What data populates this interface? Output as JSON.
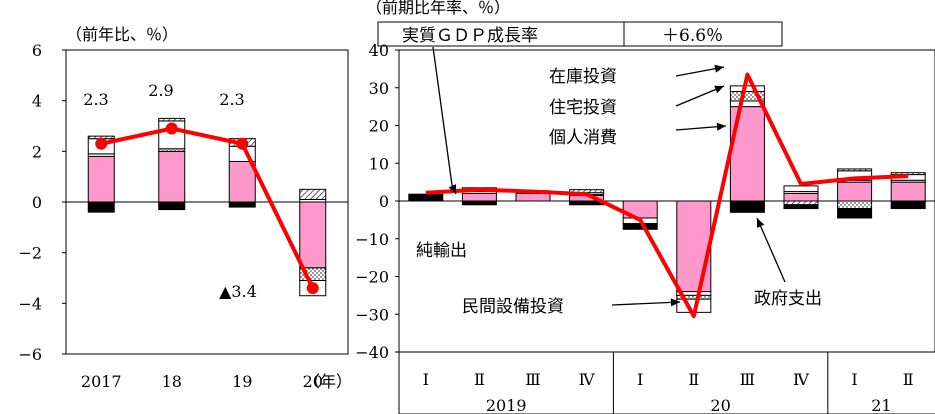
{
  "chart_data": [
    {
      "type": "bar",
      "title": "",
      "unit_label": "（前年比、％）",
      "x_unit_label": "（年）",
      "ylim": [
        -6,
        6
      ],
      "yticks": [
        6,
        4,
        2,
        0,
        -2,
        -4,
        -6
      ],
      "ytick_labels": [
        "6",
        "4",
        "2",
        "0",
        "−2",
        "−4",
        "−6"
      ],
      "categories": [
        "2017",
        "18",
        "19",
        "20"
      ],
      "stack_order": [
        "個人消費",
        "住宅投資",
        "在庫投資",
        "民間設備投資",
        "政府支出",
        "純輸出"
      ],
      "series": [
        {
          "name": "純輸出",
          "values": [
            -0.4,
            -0.3,
            -0.2,
            0.0
          ]
        },
        {
          "name": "個人消費",
          "values": [
            1.8,
            2.0,
            1.6,
            -2.6
          ]
        },
        {
          "name": "住宅投資",
          "values": [
            0.1,
            0.0,
            0.0,
            0.1
          ]
        },
        {
          "name": "民間設備投資",
          "values": [
            0.6,
            1.1,
            0.6,
            -0.6
          ]
        },
        {
          "name": "在庫投資",
          "values": [
            0.0,
            0.1,
            0.0,
            -0.5
          ]
        },
        {
          "name": "政府支出",
          "values": [
            0.1,
            0.1,
            0.3,
            0.4
          ]
        }
      ],
      "gdp_line": {
        "values": [
          2.3,
          2.9,
          2.3,
          -3.4
        ]
      },
      "data_labels": [
        "2.3",
        "2.9",
        "2.3",
        "▲3.4"
      ]
    },
    {
      "type": "bar",
      "title": "",
      "unit_label": "（前期比年率、％）",
      "gdp_box_label": "実質ＧＤＰ成長率",
      "gdp_box_value": "＋6.6％",
      "ylim": [
        -40,
        40
      ],
      "yticks": [
        40,
        30,
        20,
        10,
        0,
        -10,
        -20,
        -30,
        -40
      ],
      "ytick_labels": [
        "40",
        "30",
        "20",
        "10",
        "0",
        "−10",
        "−20",
        "−30",
        "−40"
      ],
      "categories": [
        "Ⅰ",
        "Ⅱ",
        "Ⅲ",
        "Ⅳ",
        "Ⅰ",
        "Ⅱ",
        "Ⅲ",
        "Ⅳ",
        "Ⅰ",
        "Ⅱ"
      ],
      "year_groups": [
        {
          "label": "2019",
          "count": 4
        },
        {
          "label": "20",
          "count": 4
        },
        {
          "label": "21",
          "count": 2
        }
      ],
      "stack_order": [
        "個人消費",
        "住宅投資",
        "在庫投資",
        "民間設備投資",
        "政府支出",
        "純輸出"
      ],
      "series": [
        {
          "name": "純輸出",
          "values": [
            1.8,
            -1.0,
            0.0,
            -1.0,
            -1.5,
            0.0,
            -3.0,
            -1.0,
            -2.5,
            -2.0
          ]
        },
        {
          "name": "個人消費",
          "values": [
            0.0,
            2.0,
            2.0,
            1.5,
            -4.5,
            -24.0,
            25.0,
            2.0,
            5.0,
            5.0
          ]
        },
        {
          "name": "住宅投資",
          "values": [
            0.0,
            0.5,
            0.2,
            0.2,
            0.0,
            -1.0,
            1.5,
            0.5,
            0.5,
            0.5
          ]
        },
        {
          "name": "民間設備投資",
          "values": [
            0.0,
            1.0,
            0.5,
            0.5,
            -1.5,
            -3.5,
            1.5,
            1.5,
            2.5,
            1.5
          ]
        },
        {
          "name": "在庫投資",
          "values": [
            0.0,
            0.0,
            0.0,
            0.0,
            0.0,
            -1.0,
            2.5,
            0.0,
            -2.0,
            0.0
          ]
        },
        {
          "name": "政府支出",
          "values": [
            0.0,
            0.0,
            0.0,
            0.8,
            0.0,
            0.0,
            0.0,
            -1.0,
            0.5,
            0.5
          ]
        }
      ],
      "gdp_line": {
        "values": [
          2.2,
          3.0,
          2.5,
          1.8,
          -5.0,
          -30.5,
          33.5,
          4.5,
          6.0,
          6.6
        ]
      },
      "annotations": [
        "在庫投資",
        "住宅投資",
        "個人消費",
        "純輸出",
        "民間設備投資",
        "政府支出"
      ]
    }
  ],
  "styles": {
    "個人消費": "#ff99cc",
    "住宅投資": "#ffffff",
    "在庫投資": "dots",
    "民間設備投資": "#ffffff",
    "政府支出": "hatch",
    "純輸出": "#000000",
    "gdp_line": "#ff0000"
  }
}
